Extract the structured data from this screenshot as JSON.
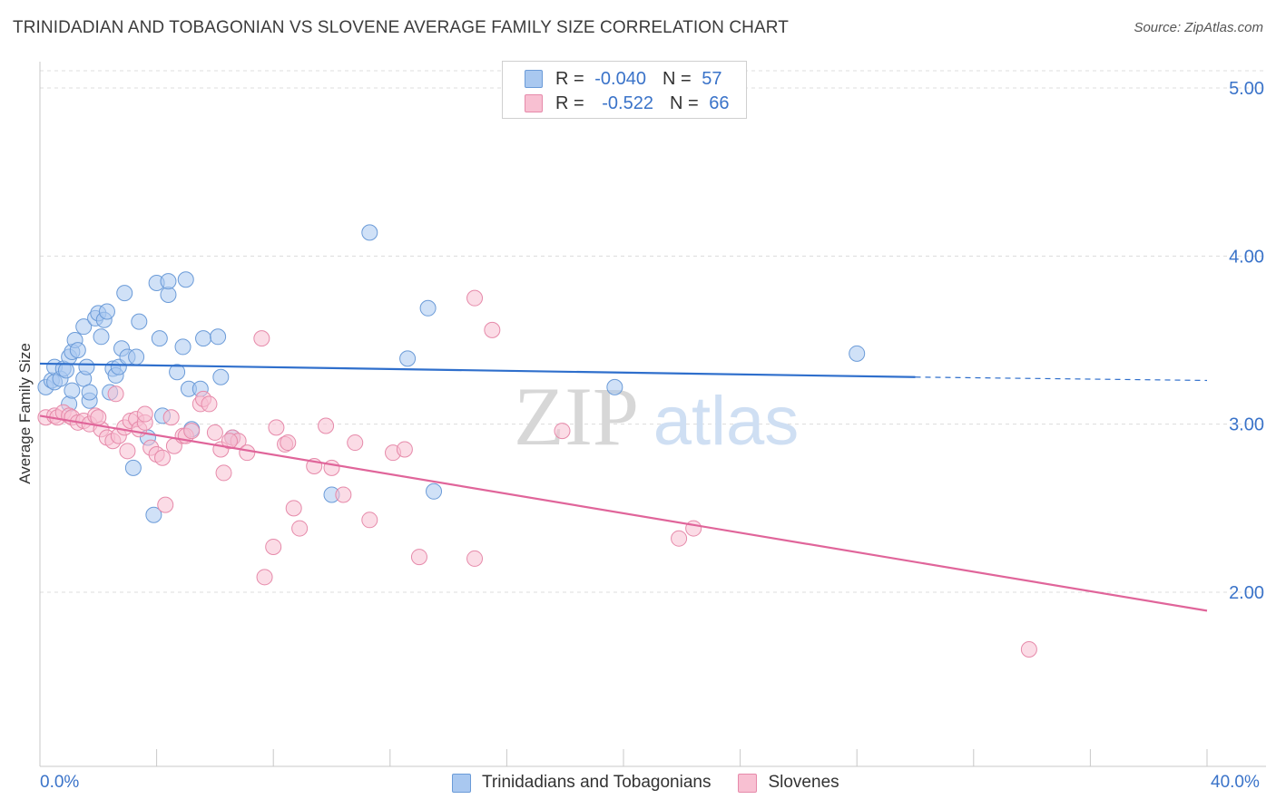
{
  "title": "TRINIDADIAN AND TOBAGONIAN VS SLOVENE AVERAGE FAMILY SIZE CORRELATION CHART",
  "source": "Source: ZipAtlas.com",
  "watermark": {
    "zip": "ZIP",
    "atlas": "atlas"
  },
  "legend_top": [
    {
      "r_label": "R =",
      "r_value": "-0.040",
      "n_label": "N =",
      "n_value": "57",
      "color": "#a9c8f0",
      "border": "#6b9bd8"
    },
    {
      "r_label": "R =",
      "r_value": "-0.522",
      "n_label": "N =",
      "n_value": "66",
      "color": "#f8c0d2",
      "border": "#e68aaa"
    }
  ],
  "bottom_legend": [
    {
      "label": "Trinidadians and Tobagonians",
      "color": "#a9c8f0",
      "border": "#6b9bd8"
    },
    {
      "label": "Slovenes",
      "color": "#f8c0d2",
      "border": "#e68aaa"
    }
  ],
  "chart_data": {
    "type": "scatter",
    "title": "TRINIDADIAN AND TOBAGONIAN VS SLOVENE AVERAGE FAMILY SIZE CORRELATION CHART",
    "ylabel": "Average Family Size",
    "xlabel": "",
    "xlim": [
      0,
      40
    ],
    "ylim": [
      1.0,
      5.1
    ],
    "x_tick_labels": [
      "0.0%",
      "40.0%"
    ],
    "y_ticks": [
      2.0,
      3.0,
      4.0,
      5.0
    ],
    "y_tick_labels": [
      "2.00",
      "3.00",
      "4.00",
      "5.00"
    ],
    "grid": true,
    "legend_position": "top-center",
    "series": [
      {
        "name": "Trinidadians and Tobagonians",
        "color": "#6b9bd8",
        "fill": "#a9c8f0",
        "line_color": "#2f6fcc",
        "trend": {
          "x0": 0,
          "y0": 3.36,
          "x1": 30,
          "y1": 3.28,
          "dashed_to": 40,
          "dashed_y": 3.26
        },
        "points": [
          [
            0.2,
            3.22
          ],
          [
            0.4,
            3.26
          ],
          [
            0.5,
            3.25
          ],
          [
            0.5,
            3.34
          ],
          [
            0.7,
            3.27
          ],
          [
            0.8,
            3.33
          ],
          [
            0.9,
            3.32
          ],
          [
            1.0,
            3.4
          ],
          [
            1.0,
            3.12
          ],
          [
            1.1,
            3.2
          ],
          [
            1.1,
            3.43
          ],
          [
            1.2,
            3.5
          ],
          [
            1.3,
            3.44
          ],
          [
            1.5,
            3.58
          ],
          [
            1.5,
            3.27
          ],
          [
            1.6,
            3.34
          ],
          [
            1.7,
            3.14
          ],
          [
            1.7,
            3.19
          ],
          [
            1.9,
            3.63
          ],
          [
            2.0,
            3.66
          ],
          [
            2.1,
            3.52
          ],
          [
            2.2,
            3.62
          ],
          [
            2.3,
            3.67
          ],
          [
            2.4,
            3.19
          ],
          [
            2.5,
            3.33
          ],
          [
            2.6,
            3.29
          ],
          [
            2.7,
            3.34
          ],
          [
            2.8,
            3.45
          ],
          [
            2.9,
            3.78
          ],
          [
            3.0,
            3.4
          ],
          [
            3.2,
            2.74
          ],
          [
            3.3,
            3.4
          ],
          [
            3.4,
            3.61
          ],
          [
            3.7,
            2.92
          ],
          [
            3.9,
            2.46
          ],
          [
            4.0,
            3.84
          ],
          [
            4.1,
            3.51
          ],
          [
            4.2,
            3.05
          ],
          [
            4.4,
            3.77
          ],
          [
            4.4,
            3.85
          ],
          [
            4.7,
            3.31
          ],
          [
            4.9,
            3.46
          ],
          [
            5.0,
            3.86
          ],
          [
            5.1,
            3.21
          ],
          [
            5.2,
            2.97
          ],
          [
            5.5,
            3.21
          ],
          [
            5.6,
            3.51
          ],
          [
            6.1,
            3.52
          ],
          [
            6.2,
            3.28
          ],
          [
            6.6,
            2.92
          ],
          [
            11.3,
            4.14
          ],
          [
            12.6,
            3.39
          ],
          [
            13.3,
            3.69
          ],
          [
            13.5,
            2.6
          ],
          [
            19.7,
            3.22
          ],
          [
            28.0,
            3.42
          ],
          [
            10.0,
            2.58
          ]
        ]
      },
      {
        "name": "Slovenes",
        "color": "#e68aaa",
        "fill": "#f8c0d2",
        "line_color": "#e0659a",
        "trend": {
          "x0": 0,
          "y0": 3.05,
          "x1": 40,
          "y1": 1.89
        },
        "points": [
          [
            0.2,
            3.04
          ],
          [
            0.5,
            3.05
          ],
          [
            0.6,
            3.04
          ],
          [
            0.8,
            3.07
          ],
          [
            1.0,
            3.05
          ],
          [
            1.1,
            3.04
          ],
          [
            1.3,
            3.01
          ],
          [
            1.5,
            3.02
          ],
          [
            1.7,
            3.0
          ],
          [
            1.9,
            3.05
          ],
          [
            2.1,
            2.97
          ],
          [
            2.3,
            2.92
          ],
          [
            2.5,
            2.9
          ],
          [
            2.6,
            3.18
          ],
          [
            2.7,
            2.93
          ],
          [
            2.9,
            2.98
          ],
          [
            3.0,
            2.84
          ],
          [
            3.1,
            3.02
          ],
          [
            3.3,
            3.03
          ],
          [
            3.4,
            2.97
          ],
          [
            3.6,
            3.01
          ],
          [
            3.8,
            2.86
          ],
          [
            4.0,
            2.82
          ],
          [
            4.2,
            2.8
          ],
          [
            4.3,
            2.52
          ],
          [
            4.5,
            3.04
          ],
          [
            4.6,
            2.87
          ],
          [
            4.9,
            2.93
          ],
          [
            5.0,
            2.93
          ],
          [
            5.2,
            2.96
          ],
          [
            5.5,
            3.12
          ],
          [
            5.6,
            3.15
          ],
          [
            5.8,
            3.12
          ],
          [
            6.0,
            2.95
          ],
          [
            6.2,
            2.85
          ],
          [
            6.3,
            2.71
          ],
          [
            6.6,
            2.92
          ],
          [
            6.8,
            2.9
          ],
          [
            7.1,
            2.83
          ],
          [
            7.6,
            3.51
          ],
          [
            7.7,
            2.09
          ],
          [
            8.0,
            2.27
          ],
          [
            8.1,
            2.98
          ],
          [
            8.4,
            2.88
          ],
          [
            8.5,
            2.89
          ],
          [
            8.7,
            2.5
          ],
          [
            8.9,
            2.38
          ],
          [
            9.4,
            2.75
          ],
          [
            9.8,
            2.99
          ],
          [
            10.0,
            2.74
          ],
          [
            10.4,
            2.58
          ],
          [
            10.8,
            2.89
          ],
          [
            11.3,
            2.43
          ],
          [
            12.1,
            2.83
          ],
          [
            12.5,
            2.85
          ],
          [
            13.0,
            2.21
          ],
          [
            14.9,
            3.75
          ],
          [
            14.9,
            2.2
          ],
          [
            15.5,
            3.56
          ],
          [
            17.9,
            2.96
          ],
          [
            21.9,
            2.32
          ],
          [
            22.4,
            2.38
          ],
          [
            33.9,
            1.66
          ],
          [
            2.0,
            3.04
          ],
          [
            3.6,
            3.06
          ],
          [
            6.5,
            2.9
          ]
        ]
      }
    ]
  }
}
